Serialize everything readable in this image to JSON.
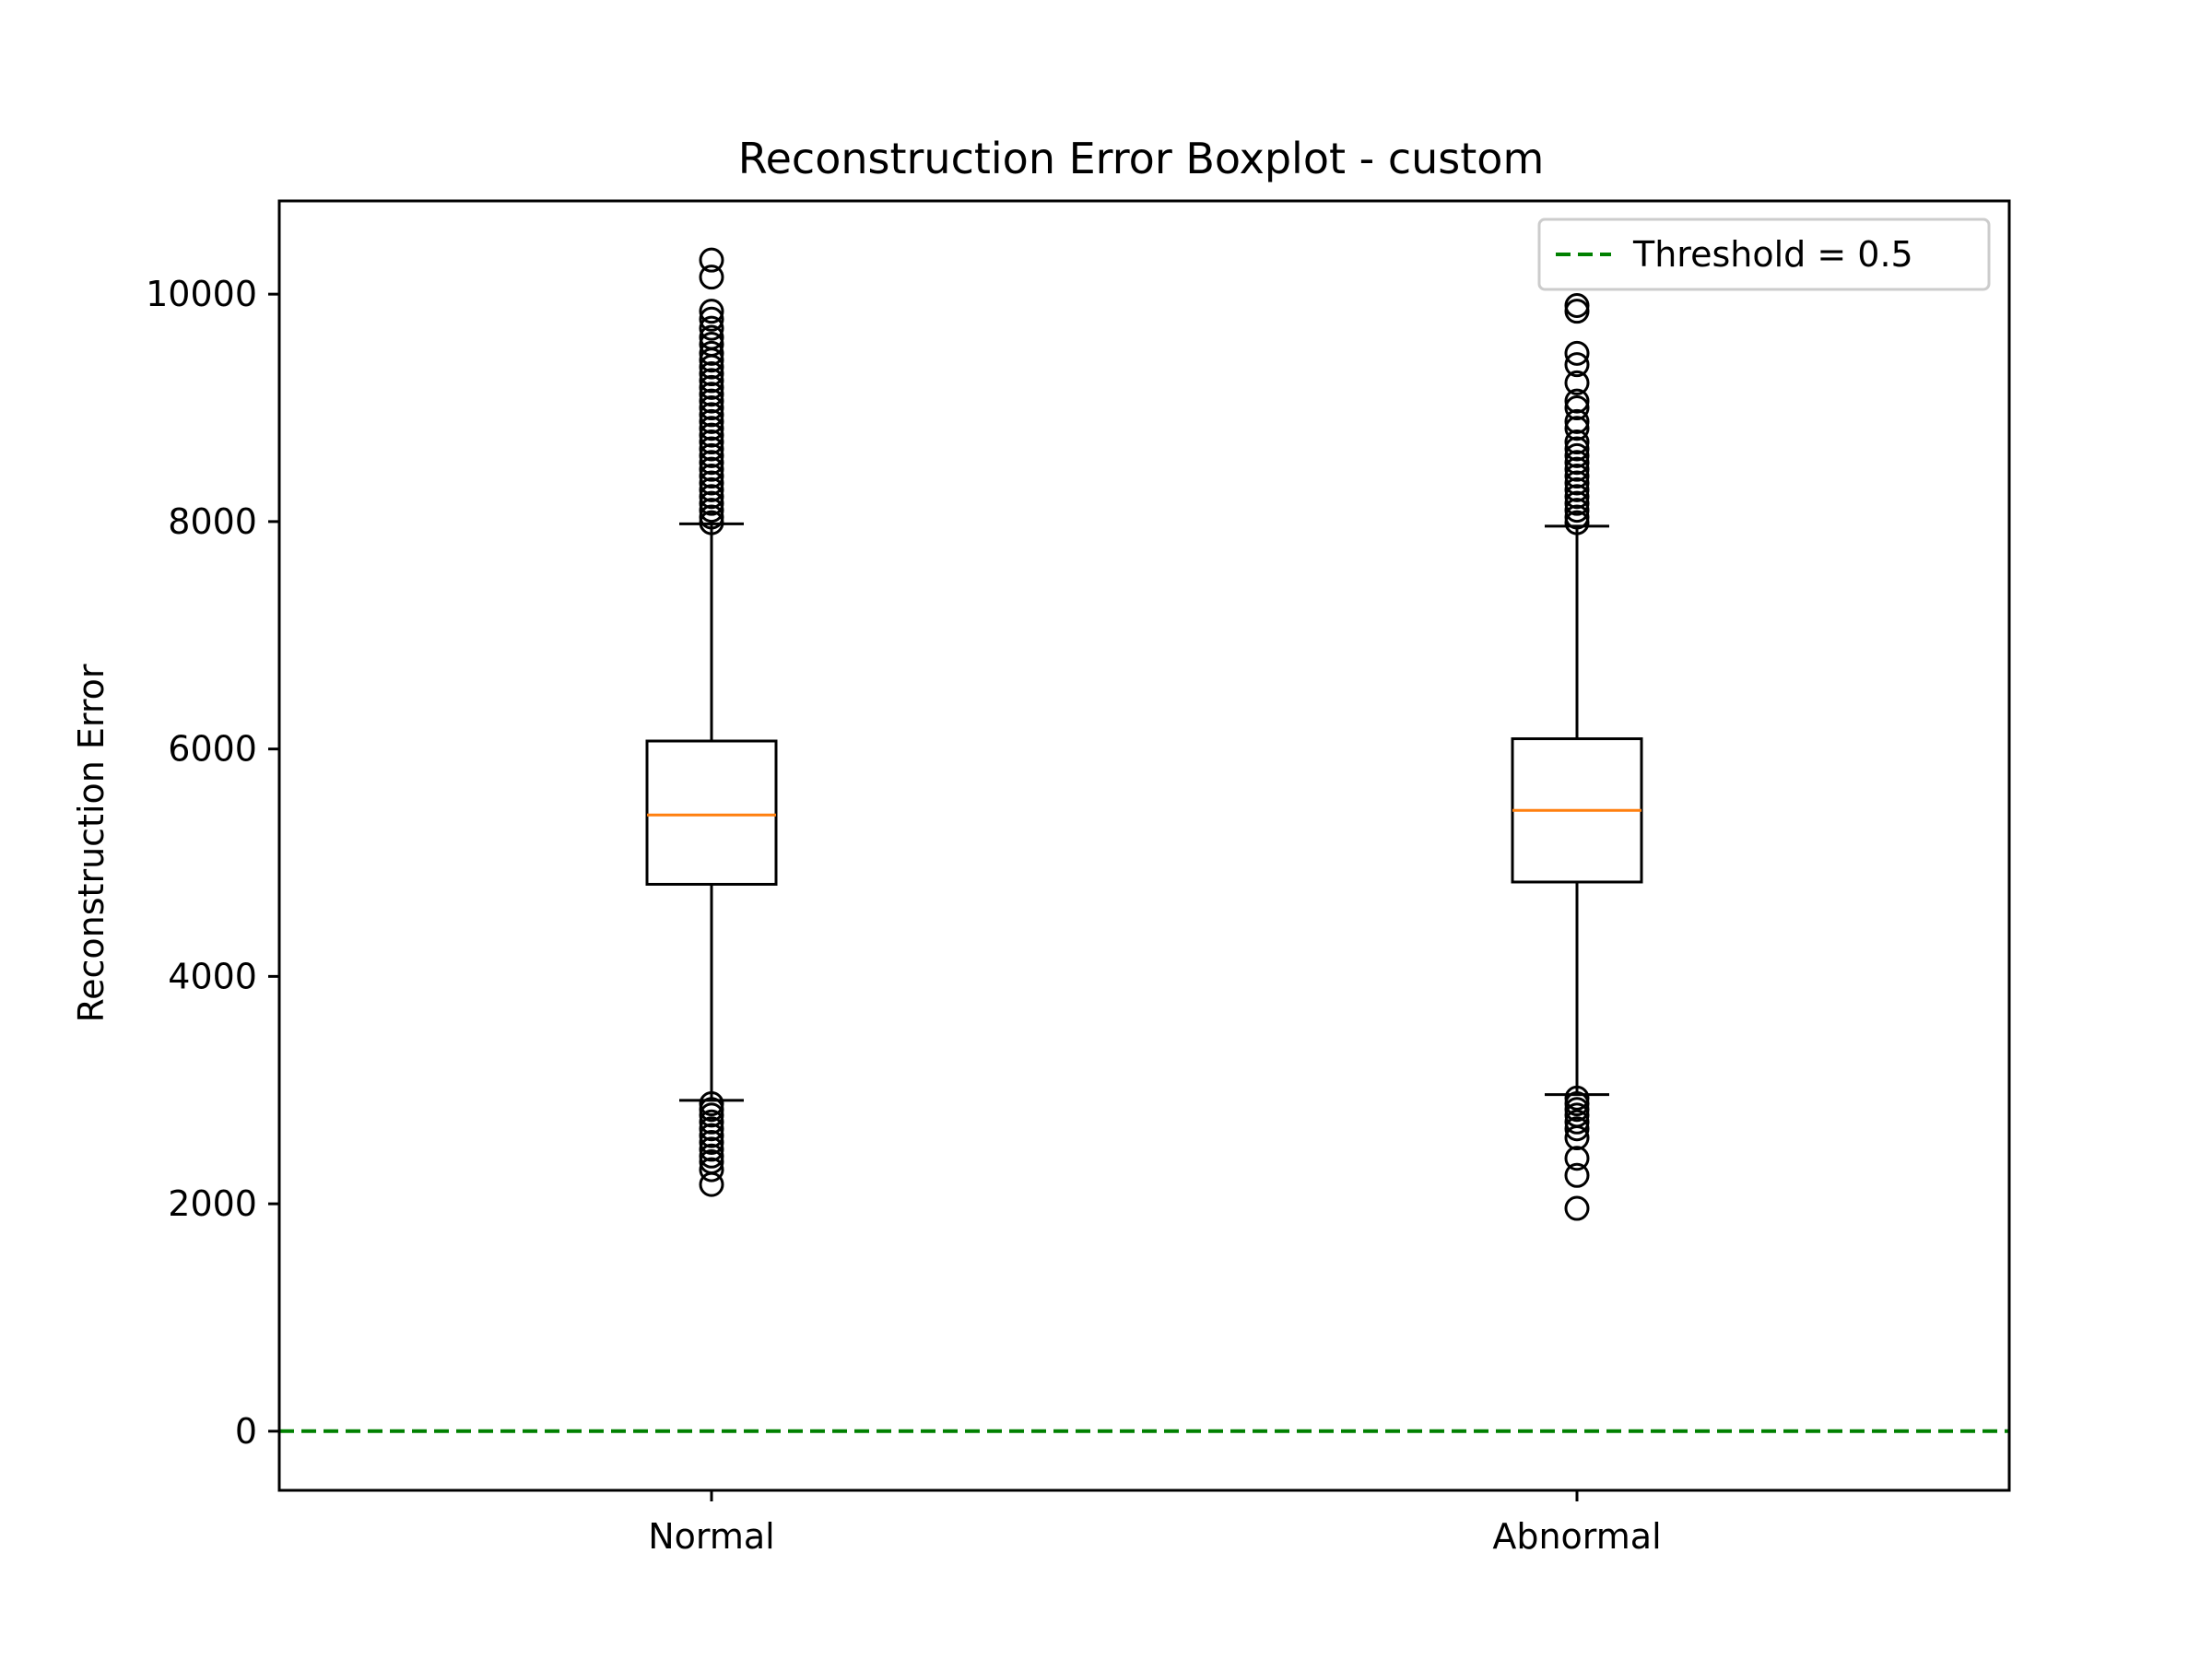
{
  "chart_data": {
    "type": "boxplot",
    "title": "Reconstruction Error Boxplot - custom",
    "xlabel": "",
    "ylabel": "Reconstruction Error",
    "ylim": [
      -520,
      10820
    ],
    "yticks": [
      0,
      2000,
      4000,
      6000,
      8000,
      10000
    ],
    "ytick_labels": [
      "0",
      "2000",
      "4000",
      "6000",
      "8000",
      "10000"
    ],
    "categories": [
      "Normal",
      "Abnormal"
    ],
    "grid": false,
    "legend_position": "top-right",
    "boxes": [
      {
        "name": "Normal",
        "q1": 4810,
        "median": 5420,
        "q3": 6070,
        "whisker_low": 2910,
        "whisker_high": 7980,
        "outliers": [
          10300,
          10150,
          9850,
          9780,
          9700,
          9620,
          9560,
          9480,
          9420,
          9360,
          9300,
          9240,
          9180,
          9120,
          9060,
          9000,
          8940,
          8880,
          8820,
          8760,
          8700,
          8640,
          8580,
          8520,
          8460,
          8400,
          8340,
          8280,
          8220,
          8160,
          8100,
          8040,
          7990,
          2880,
          2830,
          2780,
          2720,
          2660,
          2600,
          2540,
          2480,
          2420,
          2370,
          2300,
          2170
        ]
      },
      {
        "name": "Abnormal",
        "q1": 4830,
        "median": 5460,
        "q3": 6090,
        "whisker_low": 2960,
        "whisker_high": 7960,
        "outliers": [
          9900,
          9850,
          9480,
          9380,
          9220,
          9060,
          9000,
          8880,
          8820,
          8700,
          8640,
          8580,
          8520,
          8460,
          8400,
          8340,
          8280,
          8220,
          8160,
          8100,
          8040,
          7990,
          2930,
          2880,
          2830,
          2780,
          2720,
          2660,
          2580,
          2400,
          2250,
          1960
        ]
      }
    ],
    "threshold": {
      "label": "Threshold = 0.5",
      "value": 0.5,
      "color": "#008000",
      "style": "dashed"
    },
    "colors": {
      "box": "#000000",
      "median": "#ff7f0e",
      "threshold": "#008000"
    }
  }
}
